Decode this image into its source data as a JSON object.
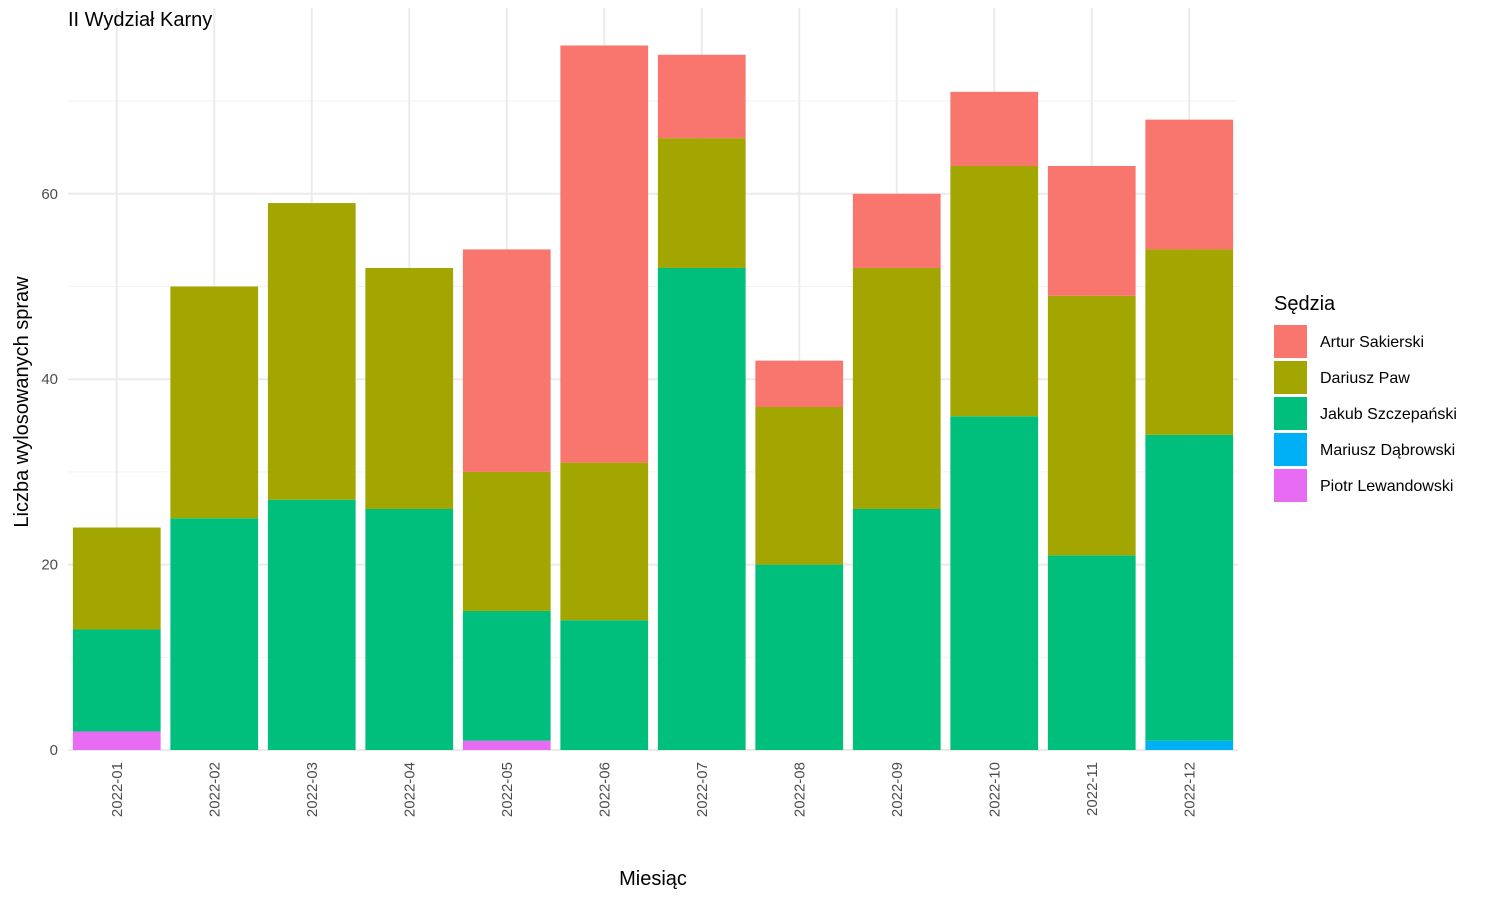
{
  "chart_data": {
    "type": "bar",
    "stacked": true,
    "title": "II Wydział Karny",
    "xlabel": "Miesiąc",
    "ylabel": "Liczba wylosowanych spraw",
    "ylim": [
      0,
      78
    ],
    "yticks": [
      0,
      20,
      40,
      60
    ],
    "grid": true,
    "legend_title": "Sędzia",
    "legend_position": "right",
    "categories": [
      "2022-01",
      "2022-02",
      "2022-03",
      "2022-04",
      "2022-05",
      "2022-06",
      "2022-07",
      "2022-08",
      "2022-09",
      "2022-10",
      "2022-11",
      "2022-12"
    ],
    "series": [
      {
        "name": "Artur Sakierski",
        "color": "#F8766D",
        "values": [
          0,
          0,
          0,
          0,
          24,
          45,
          9,
          5,
          8,
          8,
          14,
          14
        ]
      },
      {
        "name": "Dariusz Paw",
        "color": "#A3A500",
        "values": [
          11,
          25,
          32,
          26,
          15,
          17,
          14,
          17,
          26,
          27,
          28,
          20
        ]
      },
      {
        "name": "Jakub Szczepański",
        "color": "#00BF7D",
        "values": [
          11,
          25,
          27,
          26,
          14,
          14,
          52,
          20,
          26,
          36,
          21,
          33
        ]
      },
      {
        "name": "Mariusz Dąbrowski",
        "color": "#00B0F6",
        "values": [
          0,
          0,
          0,
          0,
          0,
          0,
          0,
          0,
          0,
          0,
          0,
          1
        ]
      },
      {
        "name": "Piotr Lewandowski",
        "color": "#E76BF3",
        "values": [
          2,
          0,
          0,
          0,
          1,
          0,
          0,
          0,
          0,
          0,
          0,
          0
        ]
      }
    ]
  }
}
